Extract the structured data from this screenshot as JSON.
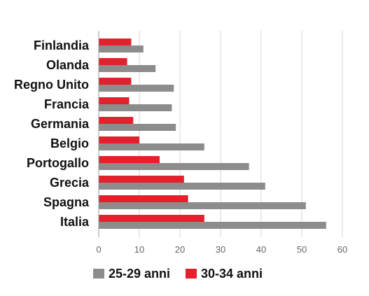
{
  "chart_data": {
    "type": "bar",
    "orientation": "horizontal",
    "categories": [
      "Finlandia",
      "Olanda",
      "Regno Unito",
      "Francia",
      "Germania",
      "Belgio",
      "Portogallo",
      "Grecia",
      "Spagna",
      "Italia"
    ],
    "series": [
      {
        "name": "25-29 anni",
        "color": "#8c8c8c",
        "values": [
          11,
          14,
          18.5,
          18,
          19,
          26,
          37,
          41,
          51,
          56
        ]
      },
      {
        "name": "30-34 anni",
        "color": "#e3202b",
        "values": [
          8,
          7,
          8,
          7.5,
          8.5,
          10,
          15,
          21,
          22,
          26
        ]
      }
    ],
    "xlim": [
      0,
      60
    ],
    "xticks": [
      0,
      10,
      20,
      30,
      40,
      50,
      60
    ],
    "grid": true,
    "legend_position": "bottom"
  }
}
